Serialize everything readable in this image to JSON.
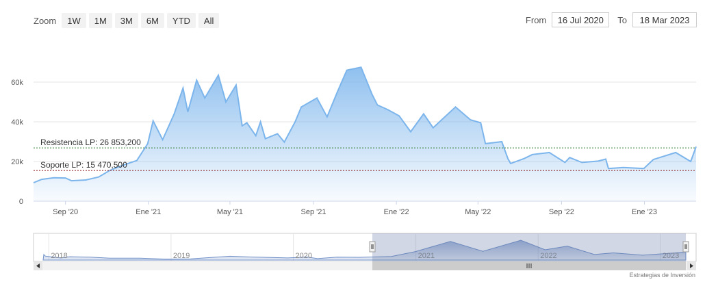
{
  "zoom": {
    "label": "Zoom",
    "buttons": [
      "1W",
      "1M",
      "3M",
      "6M",
      "YTD",
      "All"
    ]
  },
  "range": {
    "from_label": "From",
    "from_value": "16 Jul 2020",
    "to_label": "To",
    "to_value": "18 Mar 2023"
  },
  "credit": "Estrategias de Inversión",
  "colors": {
    "line": "#7cb5ec",
    "fill_top": "#7cb5ec",
    "resistance": "#2e7d32",
    "support": "#8b1a1a",
    "navigator_mask": "#667aa7"
  },
  "chart_data": {
    "type": "area",
    "title": "",
    "xlabel": "",
    "ylabel": "",
    "ylim": [
      0,
      70000
    ],
    "y_ticks": [
      0,
      20000,
      40000,
      60000
    ],
    "y_tick_labels": [
      "0",
      "20k",
      "40k",
      "60k"
    ],
    "x_ticks": [
      "Sep '20",
      "Ene '21",
      "May '21",
      "Sep '21",
      "Ene '22",
      "May '22",
      "Sep '22",
      "Ene '23"
    ],
    "x_tick_dates": [
      "2020-09-01",
      "2021-01-01",
      "2021-05-01",
      "2021-09-01",
      "2022-01-01",
      "2022-05-01",
      "2022-09-01",
      "2023-01-01"
    ],
    "grid": true,
    "series": [
      {
        "values": [
          {
            "date": "2020-07-16",
            "value": 9300
          },
          {
            "date": "2020-07-28",
            "value": 11000
          },
          {
            "date": "2020-08-15",
            "value": 11800
          },
          {
            "date": "2020-09-01",
            "value": 11700
          },
          {
            "date": "2020-09-10",
            "value": 10300
          },
          {
            "date": "2020-10-01",
            "value": 10700
          },
          {
            "date": "2020-10-20",
            "value": 12200
          },
          {
            "date": "2020-11-05",
            "value": 15500
          },
          {
            "date": "2020-11-25",
            "value": 18200
          },
          {
            "date": "2020-12-15",
            "value": 20500
          },
          {
            "date": "2020-12-31",
            "value": 29000
          },
          {
            "date": "2021-01-08",
            "value": 40500
          },
          {
            "date": "2021-01-22",
            "value": 31000
          },
          {
            "date": "2021-02-08",
            "value": 44000
          },
          {
            "date": "2021-02-21",
            "value": 57000
          },
          {
            "date": "2021-02-28",
            "value": 45000
          },
          {
            "date": "2021-03-13",
            "value": 61000
          },
          {
            "date": "2021-03-25",
            "value": 52000
          },
          {
            "date": "2021-04-14",
            "value": 63500
          },
          {
            "date": "2021-04-25",
            "value": 50000
          },
          {
            "date": "2021-05-10",
            "value": 58500
          },
          {
            "date": "2021-05-19",
            "value": 38000
          },
          {
            "date": "2021-05-26",
            "value": 39500
          },
          {
            "date": "2021-06-08",
            "value": 33000
          },
          {
            "date": "2021-06-15",
            "value": 40000
          },
          {
            "date": "2021-06-22",
            "value": 31500
          },
          {
            "date": "2021-07-10",
            "value": 34000
          },
          {
            "date": "2021-07-20",
            "value": 29800
          },
          {
            "date": "2021-08-05",
            "value": 40000
          },
          {
            "date": "2021-08-14",
            "value": 47500
          },
          {
            "date": "2021-09-06",
            "value": 52000
          },
          {
            "date": "2021-09-21",
            "value": 42500
          },
          {
            "date": "2021-10-06",
            "value": 55000
          },
          {
            "date": "2021-10-20",
            "value": 66000
          },
          {
            "date": "2021-11-10",
            "value": 67500
          },
          {
            "date": "2021-11-26",
            "value": 54000
          },
          {
            "date": "2021-12-04",
            "value": 48500
          },
          {
            "date": "2021-12-20",
            "value": 46000
          },
          {
            "date": "2022-01-05",
            "value": 43000
          },
          {
            "date": "2022-01-22",
            "value": 35000
          },
          {
            "date": "2022-02-10",
            "value": 44000
          },
          {
            "date": "2022-02-24",
            "value": 37000
          },
          {
            "date": "2022-03-29",
            "value": 47500
          },
          {
            "date": "2022-04-20",
            "value": 41000
          },
          {
            "date": "2022-05-05",
            "value": 39500
          },
          {
            "date": "2022-05-12",
            "value": 29000
          },
          {
            "date": "2022-06-05",
            "value": 30000
          },
          {
            "date": "2022-06-14",
            "value": 21500
          },
          {
            "date": "2022-06-18",
            "value": 19000
          },
          {
            "date": "2022-07-08",
            "value": 21500
          },
          {
            "date": "2022-07-20",
            "value": 23500
          },
          {
            "date": "2022-08-14",
            "value": 24500
          },
          {
            "date": "2022-09-06",
            "value": 19500
          },
          {
            "date": "2022-09-13",
            "value": 22000
          },
          {
            "date": "2022-10-01",
            "value": 19500
          },
          {
            "date": "2022-10-25",
            "value": 20200
          },
          {
            "date": "2022-11-05",
            "value": 21200
          },
          {
            "date": "2022-11-09",
            "value": 16500
          },
          {
            "date": "2022-12-01",
            "value": 17000
          },
          {
            "date": "2022-12-31",
            "value": 16500
          },
          {
            "date": "2023-01-14",
            "value": 21000
          },
          {
            "date": "2023-02-16",
            "value": 24500
          },
          {
            "date": "2023-03-10",
            "value": 20000
          },
          {
            "date": "2023-03-18",
            "value": 27500
          }
        ]
      }
    ],
    "annotations": [
      {
        "label": "Resistencia LP: 26 853,200",
        "value": 26853.2
      },
      {
        "label": "Soporte LP: 15 470,500",
        "value": 15470.5
      }
    ],
    "navigator": {
      "year_labels": [
        "2018",
        "2019",
        "2020",
        "2021",
        "2022",
        "2023"
      ],
      "year_dates": [
        "2018-01-01",
        "2019-01-01",
        "2020-01-01",
        "2021-01-01",
        "2022-01-01",
        "2023-01-01"
      ],
      "series": [
        {
          "date": "2017-12-17",
          "value": 19000
        },
        {
          "date": "2017-12-22",
          "value": 13500
        },
        {
          "date": "2018-02-06",
          "value": 7000
        },
        {
          "date": "2018-03-05",
          "value": 11500
        },
        {
          "date": "2018-05-05",
          "value": 9800
        },
        {
          "date": "2018-07-01",
          "value": 6400
        },
        {
          "date": "2018-10-01",
          "value": 6600
        },
        {
          "date": "2018-12-15",
          "value": 3300
        },
        {
          "date": "2019-03-01",
          "value": 3900
        },
        {
          "date": "2019-06-26",
          "value": 13000
        },
        {
          "date": "2019-09-01",
          "value": 10300
        },
        {
          "date": "2019-12-15",
          "value": 7200
        },
        {
          "date": "2020-02-12",
          "value": 10300
        },
        {
          "date": "2020-03-13",
          "value": 5000
        },
        {
          "date": "2020-05-10",
          "value": 9700
        },
        {
          "date": "2020-07-16",
          "value": 9300
        },
        {
          "date": "2020-10-20",
          "value": 12200
        },
        {
          "date": "2020-12-31",
          "value": 29000
        },
        {
          "date": "2021-04-14",
          "value": 63500
        },
        {
          "date": "2021-07-20",
          "value": 29800
        },
        {
          "date": "2021-11-10",
          "value": 67500
        },
        {
          "date": "2022-01-22",
          "value": 35000
        },
        {
          "date": "2022-03-29",
          "value": 47500
        },
        {
          "date": "2022-06-18",
          "value": 19000
        },
        {
          "date": "2022-08-14",
          "value": 24500
        },
        {
          "date": "2022-11-09",
          "value": 16500
        },
        {
          "date": "2023-02-16",
          "value": 24500
        },
        {
          "date": "2023-03-18",
          "value": 27500
        }
      ]
    }
  }
}
